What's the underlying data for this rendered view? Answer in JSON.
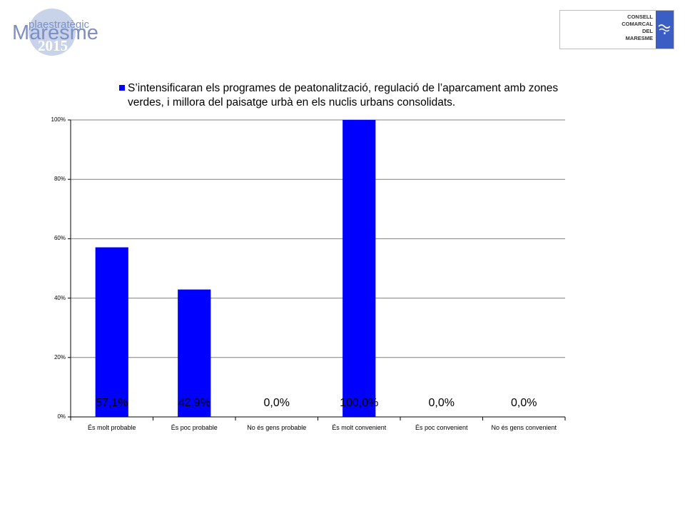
{
  "logos": {
    "left": {
      "top_text": "plaestratègic",
      "main_text": "Maresme",
      "year": "2015"
    },
    "right": {
      "lines": [
        "CONSELL",
        "COMARCAL",
        "DEL",
        "MARESME"
      ]
    }
  },
  "colors": {
    "bar": "#0000ff",
    "grid": "#808080",
    "axis": "#000000"
  },
  "chart_data": {
    "type": "bar",
    "categories": [
      "És molt probable",
      "És poc probable",
      "No és gens probable",
      "És molt convenient",
      "És poc convenient",
      "No és gens convenient"
    ],
    "series": [
      {
        "name": "S’intensificaran els programes de peatonalització, regulació de l’aparcament amb zones verdes, i millora del paisatge urbà en els nuclis urbans consolidats.",
        "values": [
          57.1,
          42.9,
          0.0,
          100.0,
          0.0,
          0.0
        ]
      }
    ],
    "data_labels": [
      "57,1%",
      "42,9%",
      "0,0%",
      "100,0%",
      "0,0%",
      "0,0%"
    ],
    "y_ticks": [
      "0%",
      "20%",
      "40%",
      "60%",
      "80%",
      "100%"
    ],
    "ylim": [
      0,
      100
    ],
    "grid": true,
    "legend_placement": "top"
  }
}
